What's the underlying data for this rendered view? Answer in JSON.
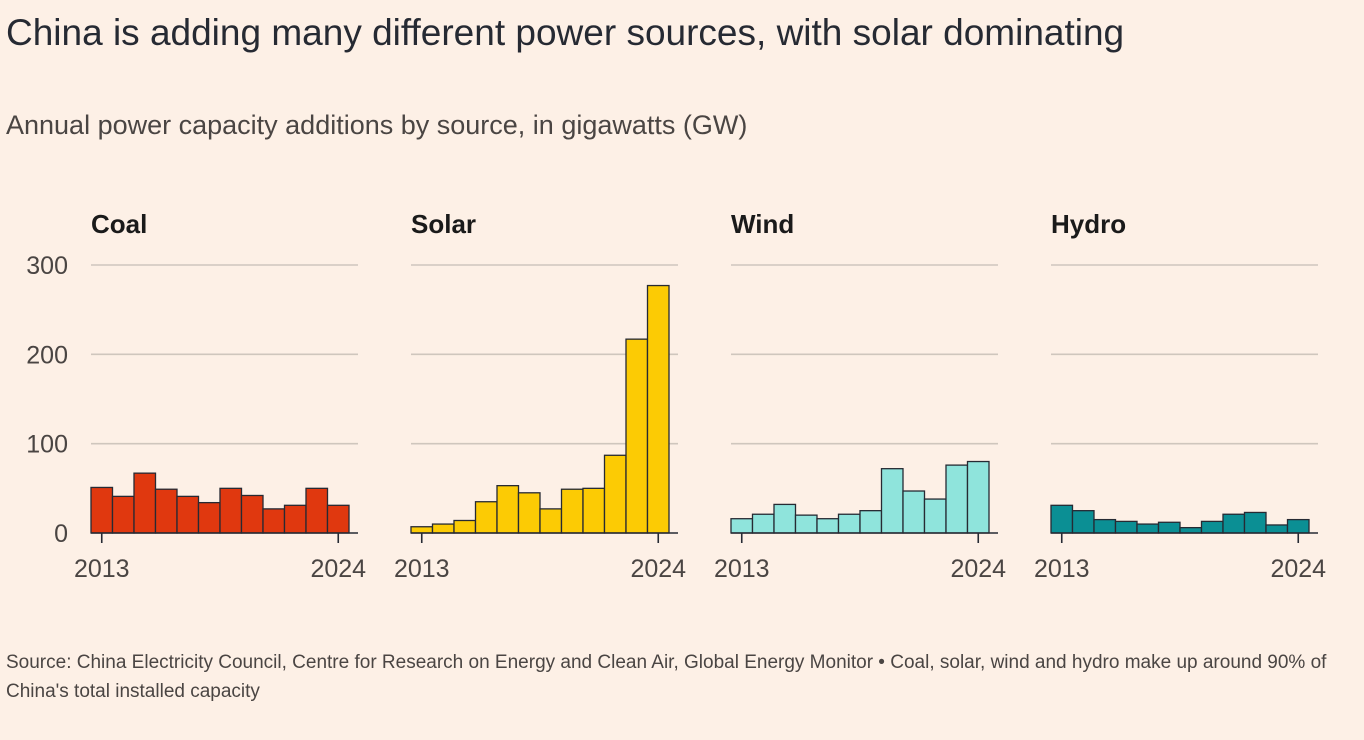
{
  "title": "China is adding many different power sources, with solar dominating",
  "subtitle": "Annual power capacity additions by source, in gigawatts (GW)",
  "source": "Source: China Electricity Council, Centre for Research on Energy and Clean Air, Global Energy Monitor • Coal, solar, wind and hydro make up around 90% of China's total installed capacity",
  "chart_data": [
    {
      "type": "bar",
      "title": "Coal",
      "color": "#e0380f",
      "x": [
        2013,
        2014,
        2015,
        2016,
        2017,
        2018,
        2019,
        2020,
        2021,
        2022,
        2023,
        2024
      ],
      "values": [
        51,
        41,
        67,
        49,
        41,
        34,
        50,
        42,
        27,
        31,
        50,
        31
      ],
      "xticks": [
        "2013",
        "2024"
      ],
      "yticks": [
        "0",
        "100",
        "200",
        "300"
      ],
      "ylim": [
        0,
        300
      ],
      "grid": true
    },
    {
      "type": "bar",
      "title": "Solar",
      "color": "#fccb04",
      "x": [
        2013,
        2014,
        2015,
        2016,
        2017,
        2018,
        2019,
        2020,
        2021,
        2022,
        2023,
        2024
      ],
      "values": [
        7,
        10,
        14,
        35,
        53,
        45,
        27,
        49,
        50,
        87,
        217,
        277
      ],
      "xticks": [
        "2013",
        "2024"
      ],
      "ylim": [
        0,
        300
      ],
      "grid": true
    },
    {
      "type": "bar",
      "title": "Wind",
      "color": "#8fe4dc",
      "x": [
        2013,
        2014,
        2015,
        2016,
        2017,
        2018,
        2019,
        2020,
        2021,
        2022,
        2023,
        2024
      ],
      "values": [
        16,
        21,
        32,
        20,
        16,
        21,
        25,
        72,
        47,
        38,
        76,
        80
      ],
      "xticks": [
        "2013",
        "2024"
      ],
      "ylim": [
        0,
        300
      ],
      "grid": true
    },
    {
      "type": "bar",
      "title": "Hydro",
      "color": "#0b8f94",
      "x": [
        2013,
        2014,
        2015,
        2016,
        2017,
        2018,
        2019,
        2020,
        2021,
        2022,
        2023,
        2024
      ],
      "values": [
        31,
        25,
        15,
        13,
        10,
        12,
        6,
        13,
        21,
        23,
        9,
        15
      ],
      "xticks": [
        "2013",
        "2024"
      ],
      "ylim": [
        0,
        300
      ],
      "grid": true
    }
  ]
}
